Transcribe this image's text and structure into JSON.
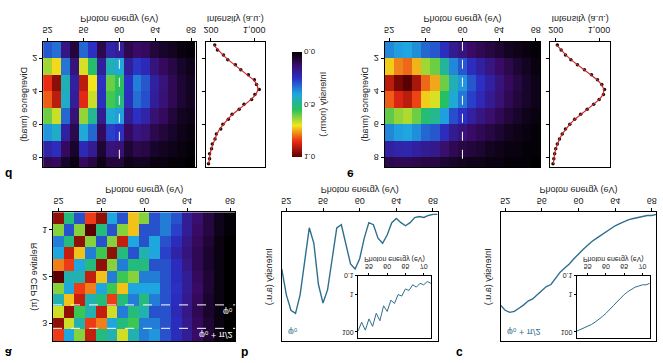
{
  "chart_data": [
    {
      "panel": "a",
      "type": "heatmap",
      "x_label": "Photon energy (eV)",
      "y_label": "Relative CEP (π)",
      "x": [
        52,
        53,
        54,
        55,
        56,
        57,
        58,
        59,
        60,
        61,
        62,
        63,
        64,
        65,
        66,
        67,
        68
      ],
      "y": [
        0.75,
        1,
        1.25,
        1.5,
        1.75,
        2,
        2.25,
        2.5,
        2.75,
        3,
        3.25
      ],
      "z": [
        [
          0.9,
          0.5,
          0.3,
          0.8,
          0.9,
          0.4,
          0.3,
          0.7,
          0.6,
          0.3,
          0.35,
          0.3,
          0.2,
          0.15,
          0.1,
          0.06,
          0.04
        ],
        [
          0.6,
          0.3,
          0.6,
          0.95,
          0.5,
          0.3,
          0.6,
          0.7,
          0.3,
          0.3,
          0.35,
          0.28,
          0.2,
          0.14,
          0.1,
          0.06,
          0.04
        ],
        [
          0.35,
          0.5,
          0.9,
          0.6,
          0.3,
          0.6,
          0.85,
          0.4,
          0.3,
          0.4,
          0.3,
          0.25,
          0.18,
          0.13,
          0.09,
          0.05,
          0.03
        ],
        [
          0.4,
          0.85,
          0.7,
          0.35,
          0.55,
          0.9,
          0.5,
          0.3,
          0.45,
          0.4,
          0.28,
          0.22,
          0.17,
          0.12,
          0.08,
          0.05,
          0.03
        ],
        [
          0.75,
          0.8,
          0.4,
          0.5,
          0.9,
          0.6,
          0.35,
          0.5,
          0.5,
          0.3,
          0.3,
          0.25,
          0.18,
          0.12,
          0.08,
          0.05,
          0.03
        ],
        [
          0.95,
          0.45,
          0.45,
          0.85,
          0.7,
          0.35,
          0.55,
          0.6,
          0.35,
          0.35,
          0.3,
          0.25,
          0.2,
          0.13,
          0.09,
          0.05,
          0.03
        ],
        [
          0.6,
          0.4,
          0.8,
          0.75,
          0.4,
          0.55,
          0.7,
          0.4,
          0.4,
          0.4,
          0.3,
          0.26,
          0.2,
          0.14,
          0.09,
          0.05,
          0.03
        ],
        [
          0.45,
          0.7,
          0.85,
          0.45,
          0.5,
          0.8,
          0.5,
          0.35,
          0.5,
          0.35,
          0.3,
          0.25,
          0.19,
          0.13,
          0.08,
          0.05,
          0.03
        ],
        [
          0.65,
          0.9,
          0.55,
          0.45,
          0.85,
          0.65,
          0.35,
          0.5,
          0.45,
          0.3,
          0.3,
          0.24,
          0.18,
          0.12,
          0.08,
          0.05,
          0.03
        ],
        [
          0.9,
          0.65,
          0.45,
          0.8,
          0.75,
          0.4,
          0.5,
          0.55,
          0.35,
          0.35,
          0.3,
          0.25,
          0.19,
          0.13,
          0.09,
          0.05,
          0.03
        ],
        [
          0.8,
          0.4,
          0.6,
          0.85,
          0.5,
          0.45,
          0.65,
          0.45,
          0.35,
          0.38,
          0.3,
          0.25,
          0.2,
          0.14,
          0.09,
          0.05,
          0.03
        ]
      ],
      "xlim": [
        51.5,
        68.5
      ],
      "ylim": [
        0.625,
        3.375
      ],
      "xticks": [
        52,
        56,
        60,
        64,
        68
      ],
      "yticks": [
        1,
        2,
        3
      ],
      "hlines": [
        {
          "y": 2.6,
          "label": "φ₀"
        },
        {
          "y": 3.1,
          "label": "φ₀ + π/2"
        }
      ]
    },
    {
      "panel": "b",
      "type": "line",
      "x_label": "Photon energy (eV)",
      "y_label": "Intensity (a.u.)",
      "annotation": "φ₀",
      "color": "#2e6e8e",
      "tick_labels": "x",
      "x": [
        51.5,
        52,
        52.5,
        53,
        53.5,
        54,
        54.5,
        55,
        55.5,
        56,
        56.5,
        57,
        57.5,
        58,
        58.5,
        59,
        59.5,
        60,
        60.5,
        61,
        61.5,
        62,
        62.5,
        63,
        63.5,
        64,
        64.5,
        65,
        65.5,
        66,
        66.5,
        67,
        67.5,
        68,
        68.5
      ],
      "values": [
        0.55,
        0.8,
        0.95,
        0.98,
        0.8,
        0.45,
        0.15,
        0.3,
        0.7,
        0.88,
        0.75,
        0.45,
        0.15,
        0.12,
        0.3,
        0.5,
        0.55,
        0.45,
        0.25,
        0.1,
        0.12,
        0.25,
        0.3,
        0.22,
        0.1,
        0.06,
        0.1,
        0.13,
        0.1,
        0.05,
        0.04,
        0.05,
        0.03,
        0.02,
        0.02
      ],
      "xlim": [
        51.5,
        68.5
      ],
      "ylim": [
        0,
        1.25
      ],
      "xticks": [
        52,
        56,
        60,
        64,
        68
      ],
      "inset": {
        "type": "line",
        "log": "y",
        "x_label": "Photon energy (eV)",
        "x": [
          52,
          53,
          54,
          55,
          56,
          57,
          58,
          59,
          60,
          61,
          62,
          63,
          64,
          65,
          66,
          67,
          68,
          69,
          70,
          71,
          72
        ],
        "values": [
          90,
          30,
          80,
          20,
          50,
          10,
          25,
          4,
          8,
          2,
          3,
          1,
          1.2,
          0.5,
          0.6,
          0.3,
          0.4,
          0.25,
          0.3,
          0.2,
          0.25
        ],
        "xlim": [
          52,
          72
        ],
        "ylim": [
          0.1,
          200
        ],
        "xticks": [
          55,
          60,
          65,
          70
        ],
        "yticks": [
          0.1,
          1,
          100
        ]
      }
    },
    {
      "panel": "c",
      "type": "line",
      "x_label": "Photon energy (eV)",
      "y_label": "Intensity (a.u.)",
      "annotation": "φ₀ + π/2",
      "color": "#2e6e8e",
      "tick_labels": "x",
      "x": [
        51.5,
        52,
        52.5,
        53,
        53.5,
        54,
        54.5,
        55,
        55.5,
        56,
        56.5,
        57,
        57.5,
        58,
        58.5,
        59,
        59.5,
        60,
        60.5,
        61,
        61.5,
        62,
        62.5,
        63,
        63.5,
        64,
        64.5,
        65,
        65.5,
        66,
        66.5,
        67,
        67.5,
        68,
        68.5
      ],
      "values": [
        0.9,
        0.95,
        0.97,
        0.96,
        0.93,
        0.9,
        0.86,
        0.84,
        0.8,
        0.76,
        0.72,
        0.7,
        0.64,
        0.58,
        0.54,
        0.5,
        0.45,
        0.4,
        0.36,
        0.32,
        0.28,
        0.25,
        0.22,
        0.19,
        0.16,
        0.13,
        0.11,
        0.09,
        0.07,
        0.06,
        0.05,
        0.04,
        0.03,
        0.03,
        0.02
      ],
      "xlim": [
        51.5,
        68.5
      ],
      "ylim": [
        0,
        1.25
      ],
      "xticks": [
        52,
        56,
        60,
        64,
        68
      ],
      "inset": {
        "type": "line",
        "log": "y",
        "x_label": "Photon energy (eV)",
        "x": [
          52,
          53,
          54,
          55,
          56,
          57,
          58,
          59,
          60,
          61,
          62,
          63,
          64,
          65,
          66,
          67,
          68,
          69,
          70,
          71,
          72
        ],
        "values": [
          90,
          75,
          60,
          50,
          40,
          30,
          22,
          15,
          10,
          6,
          4,
          2.5,
          1.5,
          1,
          0.7,
          0.5,
          0.4,
          0.35,
          0.3,
          0.3,
          0.25
        ],
        "xlim": [
          52,
          72
        ],
        "ylim": [
          0.1,
          200
        ],
        "xticks": [
          55,
          60,
          65,
          70
        ],
        "yticks": [
          0.1,
          1,
          100
        ]
      }
    },
    {
      "panel": "d",
      "type": "heatmap",
      "x_label": "Photon energy (eV)",
      "y_label": "Divergence (mrad)",
      "x": [
        52,
        53,
        54,
        55,
        56,
        57,
        58,
        59,
        60,
        61,
        62,
        63,
        64,
        65,
        66,
        67,
        68
      ],
      "y": [
        1.5,
        2.5,
        3.5,
        4.5,
        5.5,
        6.5,
        7.5,
        8.5
      ],
      "z": [
        [
          0.3,
          0.33,
          0.16,
          0.07,
          0.32,
          0.25,
          0.09,
          0.21,
          0.19,
          0.09,
          0.12,
          0.11,
          0.07,
          0.05,
          0.04,
          0.02,
          0.01
        ],
        [
          0.64,
          0.71,
          0.34,
          0.15,
          0.68,
          0.53,
          0.19,
          0.45,
          0.41,
          0.19,
          0.26,
          0.23,
          0.15,
          0.11,
          0.08,
          0.05,
          0.03
        ],
        [
          0.85,
          0.95,
          0.45,
          0.2,
          0.9,
          0.7,
          0.25,
          0.6,
          0.55,
          0.25,
          0.35,
          0.3,
          0.2,
          0.15,
          0.1,
          0.06,
          0.04
        ],
        [
          0.81,
          0.9,
          0.43,
          0.19,
          0.86,
          0.67,
          0.24,
          0.57,
          0.52,
          0.24,
          0.33,
          0.29,
          0.19,
          0.14,
          0.1,
          0.06,
          0.04
        ],
        [
          0.6,
          0.67,
          0.32,
          0.14,
          0.63,
          0.49,
          0.18,
          0.42,
          0.39,
          0.18,
          0.25,
          0.21,
          0.14,
          0.11,
          0.07,
          0.04,
          0.03
        ],
        [
          0.38,
          0.43,
          0.2,
          0.09,
          0.41,
          0.32,
          0.11,
          0.27,
          0.25,
          0.11,
          0.16,
          0.14,
          0.09,
          0.07,
          0.05,
          0.03,
          0.02
        ],
        [
          0.21,
          0.24,
          0.11,
          0.05,
          0.23,
          0.18,
          0.06,
          0.15,
          0.14,
          0.06,
          0.09,
          0.08,
          0.05,
          0.04,
          0.03,
          0.02,
          0.01
        ],
        [
          0.1,
          0.11,
          0.05,
          0.02,
          0.11,
          0.08,
          0.03,
          0.07,
          0.07,
          0.03,
          0.04,
          0.04,
          0.02,
          0.02,
          0.01,
          0.01,
          0.0
        ]
      ],
      "xlim": [
        51.5,
        68.5
      ],
      "ylim": [
        1,
        8.6
      ],
      "xticks": [
        52,
        56,
        60,
        64,
        68
      ],
      "yticks": [
        2,
        4,
        6,
        8
      ],
      "vline": 60,
      "colorbar": {
        "title": "Intensity (norm.)",
        "range": [
          0,
          1
        ],
        "ticks": [
          {
            "value": 0,
            "label": "0.0"
          },
          {
            "value": 0.5,
            "label": "0.5"
          },
          {
            "value": 1,
            "label": "1.0"
          }
        ]
      },
      "lineout": {
        "type": "scatter",
        "x_label": "Intensity (a.u.)",
        "tick_labels": "x",
        "y": [
          1.2,
          1.5,
          1.8,
          2.1,
          2.4,
          2.7,
          3.0,
          3.3,
          3.6,
          3.9,
          4.2,
          4.5,
          4.8,
          5.1,
          5.4,
          5.7,
          6.0,
          6.3,
          6.6,
          6.9,
          7.2,
          7.5,
          7.8,
          8.1,
          8.4
        ],
        "series": [
          {
            "type": "scatter",
            "marker": "circle",
            "color": "#111111",
            "values": [
              270,
              320,
              430,
              510,
              650,
              750,
              890,
              1000,
              1040,
              1090,
              1010,
              950,
              810,
              720,
              590,
              520,
              420,
              380,
              300,
              275,
              225,
              210,
              175,
              175,
              155
            ]
          },
          {
            "type": "line",
            "color": "#d62728",
            "values": [
              250,
              330,
              420,
              520,
              640,
              760,
              880,
              980,
              1050,
              1070,
              1030,
              940,
              830,
              710,
              600,
              510,
              430,
              360,
              310,
              270,
              230,
              205,
              185,
              170,
              160
            ]
          }
        ],
        "xlim": [
          100,
          1200
        ],
        "xticks": [
          200,
          {
            "value": 1000,
            "label": "1,000"
          }
        ]
      }
    },
    {
      "panel": "e",
      "type": "heatmap",
      "x_label": "Photon energy (eV)",
      "y_label": "Divergence (mrad)",
      "x": [
        52,
        53,
        54,
        55,
        56,
        57,
        58,
        59,
        60,
        61,
        62,
        63,
        64,
        65,
        66,
        67,
        68
      ],
      "y": [
        1.5,
        2.5,
        3.5,
        4.5,
        5.5,
        6.5,
        7.5,
        8.5
      ],
      "z": [
        [
          0.36,
          0.39,
          0.4,
          0.37,
          0.32,
          0.3,
          0.24,
          0.18,
          0.15,
          0.12,
          0.1,
          0.08,
          0.06,
          0.04,
          0.03,
          0.02,
          0.01
        ],
        [
          0.72,
          0.78,
          0.8,
          0.74,
          0.64,
          0.6,
          0.48,
          0.36,
          0.3,
          0.24,
          0.2,
          0.16,
          0.12,
          0.09,
          0.06,
          0.04,
          0.02
        ],
        [
          0.9,
          0.97,
          1.0,
          0.92,
          0.8,
          0.75,
          0.6,
          0.45,
          0.38,
          0.3,
          0.25,
          0.2,
          0.15,
          0.11,
          0.08,
          0.05,
          0.03
        ],
        [
          0.81,
          0.87,
          0.9,
          0.83,
          0.72,
          0.68,
          0.54,
          0.41,
          0.34,
          0.27,
          0.23,
          0.18,
          0.14,
          0.1,
          0.07,
          0.05,
          0.03
        ],
        [
          0.59,
          0.63,
          0.65,
          0.6,
          0.52,
          0.49,
          0.39,
          0.29,
          0.25,
          0.2,
          0.16,
          0.13,
          0.1,
          0.07,
          0.05,
          0.03,
          0.02
        ],
        [
          0.36,
          0.39,
          0.4,
          0.37,
          0.32,
          0.3,
          0.24,
          0.18,
          0.15,
          0.12,
          0.1,
          0.08,
          0.06,
          0.04,
          0.03,
          0.02,
          0.01
        ],
        [
          0.2,
          0.21,
          0.22,
          0.2,
          0.18,
          0.17,
          0.13,
          0.1,
          0.08,
          0.07,
          0.06,
          0.04,
          0.03,
          0.02,
          0.02,
          0.01,
          0.01
        ],
        [
          0.09,
          0.1,
          0.1,
          0.09,
          0.08,
          0.08,
          0.06,
          0.05,
          0.04,
          0.03,
          0.03,
          0.02,
          0.02,
          0.01,
          0.01,
          0.01,
          0.0
        ]
      ],
      "xlim": [
        51.5,
        68.5
      ],
      "ylim": [
        1,
        8.6
      ],
      "xticks": [
        52,
        56,
        60,
        64,
        68
      ],
      "yticks": [
        2,
        4,
        6,
        8
      ],
      "vline": 60,
      "lineout": {
        "type": "scatter",
        "x_label": "Intensity (a.u.)",
        "tick_labels": "x",
        "y": [
          1.2,
          1.5,
          1.8,
          2.1,
          2.4,
          2.7,
          3.0,
          3.3,
          3.6,
          3.9,
          4.2,
          4.5,
          4.8,
          5.1,
          5.4,
          5.7,
          6.0,
          6.3,
          6.6,
          6.9,
          7.2,
          7.5,
          7.8,
          8.1,
          8.4
        ],
        "series": [
          {
            "type": "scatter",
            "marker": "circle",
            "color": "#111111",
            "values": [
              230,
              300,
              380,
              480,
              600,
              730,
              860,
              970,
              1050,
              1100,
              1080,
              1000,
              900,
              780,
              660,
              550,
              460,
              380,
              320,
              270,
              230,
              200,
              180,
              165,
              150
            ]
          },
          {
            "type": "line",
            "color": "#d62728",
            "values": [
              220,
              295,
              385,
              485,
              605,
              730,
              855,
              965,
              1045,
              1090,
              1075,
              1005,
              895,
              775,
              660,
              555,
              460,
              385,
              320,
              270,
              230,
              200,
              180,
              165,
              155
            ]
          }
        ],
        "xlim": [
          100,
          1200
        ],
        "xticks": [
          200,
          {
            "value": 1000,
            "label": "1,000"
          }
        ]
      }
    }
  ]
}
